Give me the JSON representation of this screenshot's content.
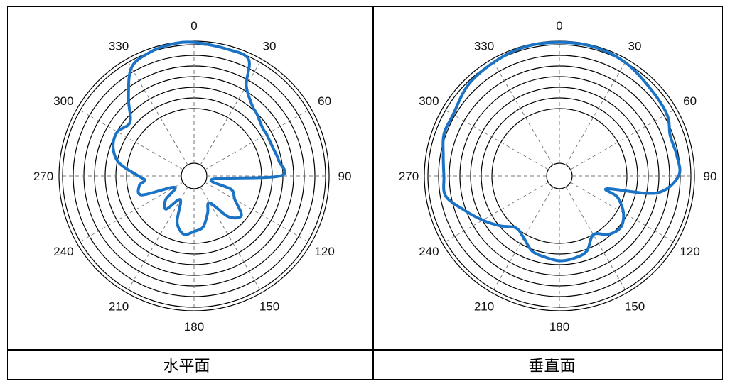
{
  "chart_data": [
    {
      "type": "polar",
      "title": "水平面",
      "angle_labels": [
        "0",
        "30",
        "60",
        "90",
        "120",
        "150",
        "180",
        "210",
        "240",
        "270",
        "300",
        "330"
      ],
      "rings": 8,
      "grid": true,
      "series_color": "#1a73c4",
      "series": [
        {
          "theta": [
            0,
            15,
            25,
            30,
            40,
            45,
            55,
            60,
            70,
            80,
            90,
            100,
            110,
            120,
            130,
            140,
            150,
            160,
            170,
            180,
            190,
            200,
            210,
            220,
            230,
            240,
            250,
            260,
            265,
            270,
            280,
            290,
            300,
            310,
            320,
            330,
            340,
            350
          ],
          "r": [
            0.99,
            0.97,
            0.95,
            0.75,
            0.64,
            0.62,
            0.58,
            0.58,
            0.58,
            0.6,
            0.6,
            0.05,
            0.22,
            0.28,
            0.4,
            0.33,
            0.15,
            0.22,
            0.32,
            0.35,
            0.38,
            0.3,
            0.12,
            0.25,
            0.2,
            0.08,
            0.35,
            0.35,
            0.3,
            0.35,
            0.52,
            0.6,
            0.62,
            0.58,
            0.73,
            0.92,
            0.97,
            0.99
          ]
        }
      ]
    },
    {
      "type": "polar",
      "title": "垂直面",
      "angle_labels": [
        "0",
        "30",
        "60",
        "90",
        "120",
        "150",
        "180",
        "210",
        "240",
        "270",
        "300",
        "330"
      ],
      "rings": 8,
      "grid": true,
      "series_color": "#1a73c4",
      "series": [
        {
          "theta": [
            0,
            15,
            30,
            45,
            60,
            70,
            80,
            90,
            100,
            105,
            110,
            120,
            130,
            140,
            150,
            160,
            170,
            180,
            190,
            200,
            210,
            220,
            230,
            240,
            250,
            260,
            270,
            280,
            290,
            300,
            315,
            330,
            345
          ],
          "r": [
            0.99,
            0.99,
            0.97,
            0.93,
            0.91,
            0.86,
            0.87,
            0.87,
            0.7,
            0.3,
            0.4,
            0.5,
            0.55,
            0.52,
            0.45,
            0.55,
            0.58,
            0.59,
            0.57,
            0.55,
            0.48,
            0.45,
            0.53,
            0.62,
            0.72,
            0.84,
            0.84,
            0.86,
            0.9,
            0.9,
            0.95,
            0.97,
            0.99
          ]
        }
      ]
    }
  ]
}
